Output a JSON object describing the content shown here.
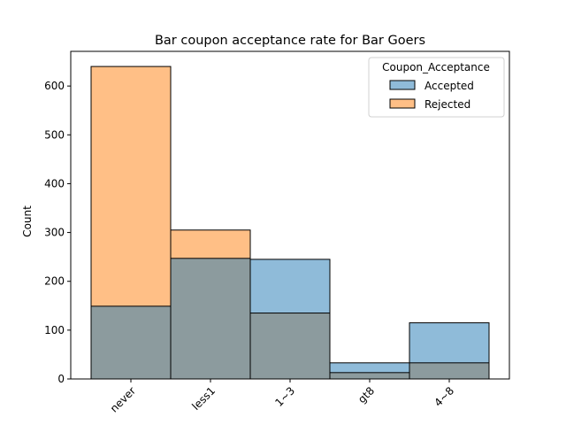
{
  "chart_data": {
    "type": "bar",
    "title": "Bar coupon acceptance rate for Bar Goers",
    "xlabel": "",
    "ylabel": "Count",
    "categories": [
      "never",
      "less1",
      "1~3",
      "gt8",
      "4~8"
    ],
    "series": [
      {
        "name": "Accepted",
        "values": [
          149,
          247,
          245,
          33,
          115
        ],
        "color": "#1f77b4"
      },
      {
        "name": "Rejected",
        "values": [
          640,
          305,
          135,
          13,
          33
        ],
        "color": "#ff7f0e"
      }
    ],
    "ylim": [
      0,
      671
    ],
    "yticks": [
      0,
      100,
      200,
      300,
      400,
      500,
      600
    ],
    "legend": {
      "title": "Coupon_Acceptance",
      "position": "top-right"
    },
    "grid": false,
    "overlay_color": "#8c9b9e"
  }
}
